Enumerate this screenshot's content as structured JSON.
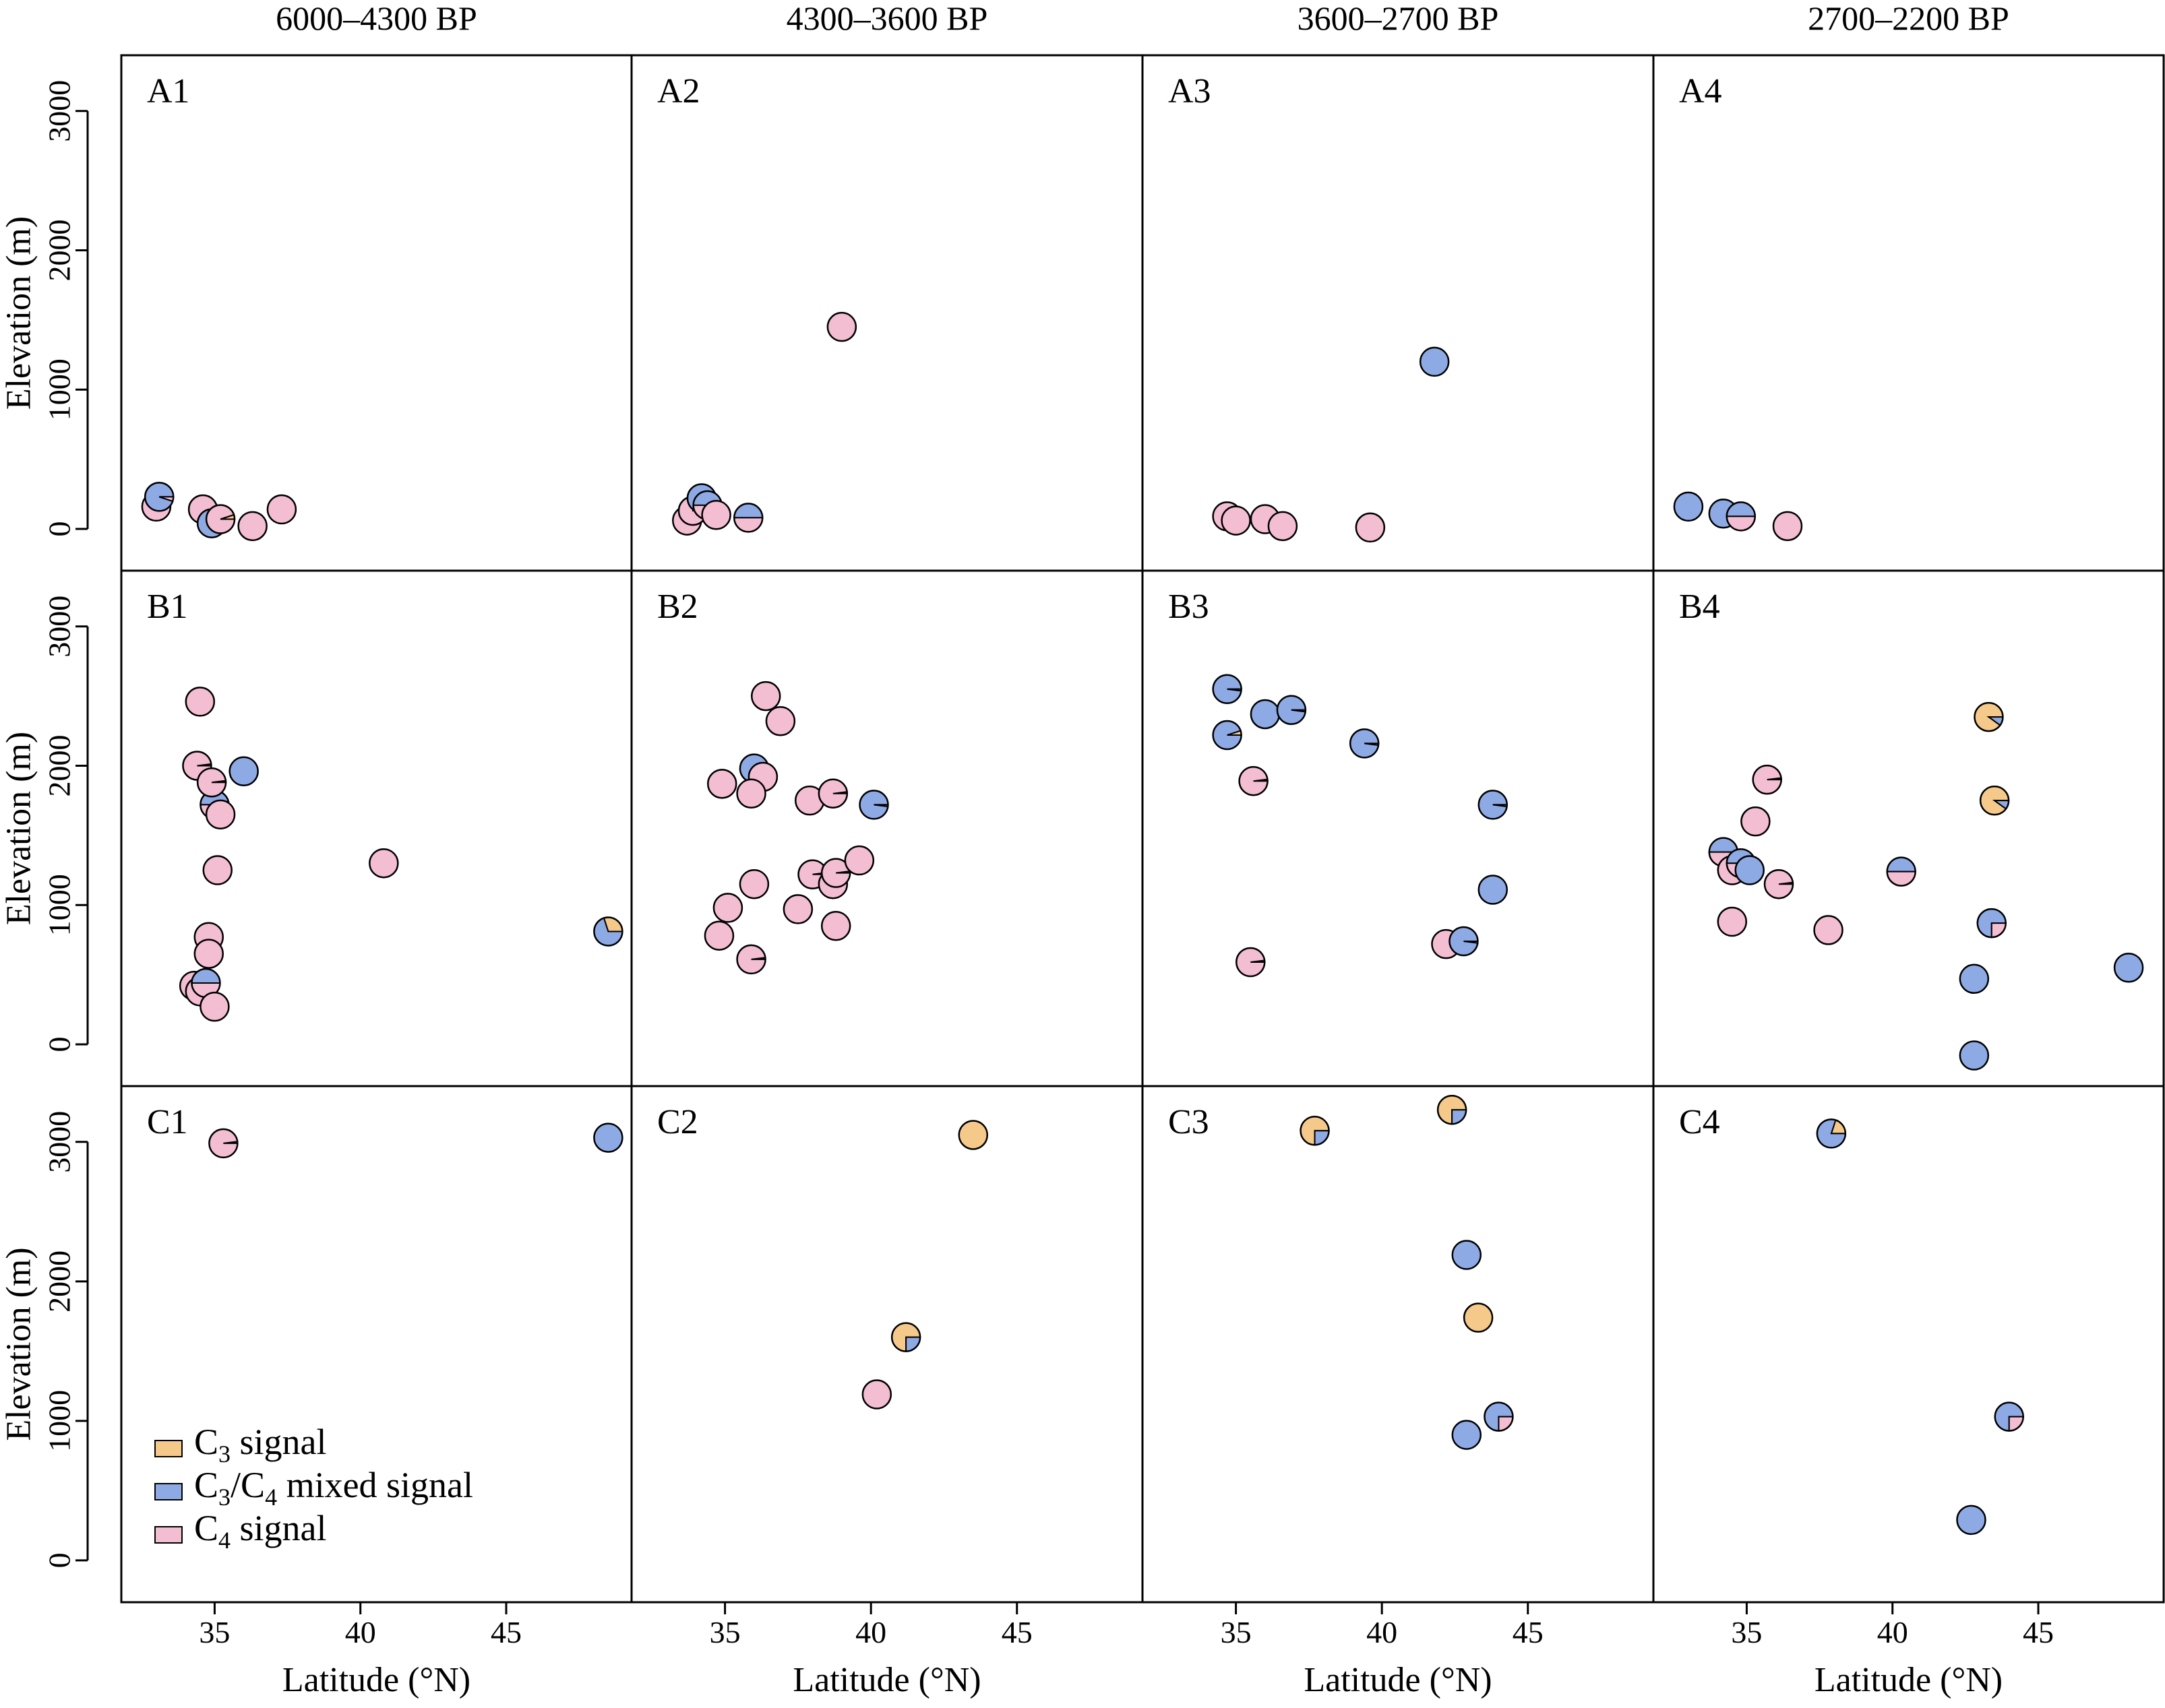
{
  "legend": [
    {
      "name": "C",
      "sub": "3",
      "rest": " signal",
      "key": "c3",
      "color": "#f5c98a"
    },
    {
      "name": "C",
      "sub": "3",
      "rest": "/C",
      "sub2": "4",
      "rest2": " mixed signal",
      "key": "mix",
      "color": "#8eaae5"
    },
    {
      "name": "C",
      "sub": "4",
      "rest": " signal",
      "key": "c4",
      "color": "#f3bdd2"
    }
  ],
  "chart_data": {
    "type": "scatter",
    "marker": "pie",
    "xlabel": "Latitude (°N)",
    "ylabel": "Elevation (m)",
    "xlim": [
      31.8,
      49.3
    ],
    "ylim": [
      -300,
      3400
    ],
    "xticks": [
      35,
      40,
      45
    ],
    "yticks": [
      0,
      1000,
      2000,
      3000
    ],
    "columns": [
      "6000–4300 BP",
      "4300–3600 BP",
      "3600–2700 BP",
      "2700–2200 BP"
    ],
    "rows": [
      "A",
      "B",
      "C"
    ],
    "pie_order": [
      "c3",
      "mix",
      "c4"
    ],
    "panels": [
      {
        "label": "A1",
        "points": [
          [
            33.0,
            160,
            [
              0,
              0,
              1
            ]
          ],
          [
            33.1,
            230,
            [
              0,
              0.95,
              0.05
            ]
          ],
          [
            34.6,
            140,
            [
              0,
              0,
              1
            ]
          ],
          [
            34.9,
            40,
            [
              0.05,
              0.95,
              0
            ]
          ],
          [
            35.2,
            70,
            [
              0.05,
              0,
              0.95
            ]
          ],
          [
            36.3,
            20,
            [
              0,
              0,
              1
            ]
          ],
          [
            37.3,
            140,
            [
              0,
              0,
              1
            ]
          ]
        ]
      },
      {
        "label": "A2",
        "points": [
          [
            33.7,
            60,
            [
              0,
              0,
              1
            ]
          ],
          [
            33.9,
            130,
            [
              0.25,
              0,
              0.75
            ]
          ],
          [
            34.2,
            220,
            [
              0,
              1,
              0
            ]
          ],
          [
            34.4,
            170,
            [
              0,
              0.5,
              0.5
            ]
          ],
          [
            34.7,
            100,
            [
              0,
              0,
              1
            ]
          ],
          [
            35.8,
            80,
            [
              0,
              0.5,
              0.5
            ]
          ],
          [
            39.0,
            1450,
            [
              0,
              0,
              1
            ]
          ]
        ]
      },
      {
        "label": "A3",
        "points": [
          [
            34.7,
            90,
            [
              0,
              0,
              1
            ]
          ],
          [
            35.0,
            60,
            [
              0,
              0,
              1
            ]
          ],
          [
            36.0,
            70,
            [
              0,
              0,
              1
            ]
          ],
          [
            36.6,
            20,
            [
              0,
              0,
              1
            ]
          ],
          [
            39.6,
            10,
            [
              0,
              0,
              1
            ]
          ],
          [
            41.8,
            1200,
            [
              0,
              1,
              0
            ]
          ]
        ]
      },
      {
        "label": "A4",
        "points": [
          [
            33.0,
            160,
            [
              0,
              1,
              0
            ]
          ],
          [
            34.2,
            110,
            [
              0,
              1,
              0
            ]
          ],
          [
            34.8,
            90,
            [
              0,
              0.5,
              0.5
            ]
          ],
          [
            36.4,
            20,
            [
              0,
              0,
              1
            ]
          ]
        ]
      },
      {
        "label": "B1",
        "points": [
          [
            34.5,
            2460,
            [
              0,
              0,
              1
            ]
          ],
          [
            34.4,
            2000,
            [
              0,
              0.02,
              0.98
            ]
          ],
          [
            35.0,
            1720,
            [
              0,
              0.5,
              0.5
            ]
          ],
          [
            34.9,
            1880,
            [
              0,
              0.02,
              0.98
            ]
          ],
          [
            35.2,
            1650,
            [
              0,
              0,
              1
            ]
          ],
          [
            36.0,
            1960,
            [
              0,
              1,
              0
            ]
          ],
          [
            35.1,
            1250,
            [
              0,
              0,
              1
            ]
          ],
          [
            34.8,
            770,
            [
              0,
              0,
              1
            ]
          ],
          [
            34.8,
            650,
            [
              0,
              0,
              1
            ]
          ],
          [
            34.3,
            420,
            [
              0,
              0,
              1
            ]
          ],
          [
            34.5,
            380,
            [
              0,
              0,
              1
            ]
          ],
          [
            34.7,
            440,
            [
              0,
              0.5,
              0.5
            ]
          ],
          [
            35.0,
            270,
            [
              0,
              0,
              1
            ]
          ],
          [
            40.8,
            1300,
            [
              0,
              0,
              1
            ]
          ],
          [
            48.5,
            810,
            [
              0.3,
              0.7,
              0
            ]
          ]
        ]
      },
      {
        "label": "B2",
        "points": [
          [
            36.4,
            2500,
            [
              0,
              0,
              1
            ]
          ],
          [
            36.9,
            2320,
            [
              0,
              0,
              1
            ]
          ],
          [
            36.0,
            1980,
            [
              0,
              1,
              0
            ]
          ],
          [
            36.3,
            1920,
            [
              0,
              0,
              1
            ]
          ],
          [
            34.9,
            1870,
            [
              0,
              0,
              1
            ]
          ],
          [
            35.9,
            1800,
            [
              0,
              0,
              1
            ]
          ],
          [
            37.9,
            1750,
            [
              0,
              0,
              1
            ]
          ],
          [
            38.7,
            1800,
            [
              0,
              0.02,
              0.98
            ]
          ],
          [
            40.1,
            1720,
            [
              0,
              0.98,
              0.02
            ]
          ],
          [
            36.0,
            1150,
            [
              0,
              0,
              1
            ]
          ],
          [
            38.0,
            1220,
            [
              0,
              0.02,
              0.98
            ]
          ],
          [
            38.7,
            1150,
            [
              0,
              0,
              1
            ]
          ],
          [
            38.8,
            1230,
            [
              0,
              0.02,
              0.98
            ]
          ],
          [
            39.6,
            1320,
            [
              0,
              0,
              1
            ]
          ],
          [
            35.1,
            980,
            [
              0,
              0,
              1
            ]
          ],
          [
            37.5,
            970,
            [
              0,
              0,
              1
            ]
          ],
          [
            34.8,
            780,
            [
              0,
              0,
              1
            ]
          ],
          [
            38.8,
            850,
            [
              0,
              0,
              1
            ]
          ],
          [
            35.9,
            610,
            [
              0,
              0.02,
              0.98
            ]
          ]
        ]
      },
      {
        "label": "B3",
        "points": [
          [
            34.7,
            2550,
            [
              0,
              0.98,
              0.02
            ]
          ],
          [
            34.7,
            2220,
            [
              0.05,
              0.95,
              0
            ]
          ],
          [
            36.0,
            2370,
            [
              0,
              1,
              0
            ]
          ],
          [
            36.9,
            2400,
            [
              0,
              0.98,
              0.02
            ]
          ],
          [
            39.4,
            2160,
            [
              0,
              0.98,
              0.02
            ]
          ],
          [
            35.6,
            1890,
            [
              0,
              0.02,
              0.98
            ]
          ],
          [
            43.8,
            1720,
            [
              0,
              0.98,
              0.02
            ]
          ],
          [
            43.8,
            1110,
            [
              0,
              1,
              0
            ]
          ],
          [
            42.2,
            720,
            [
              0,
              0,
              1
            ]
          ],
          [
            42.8,
            740,
            [
              0,
              0.98,
              0.02
            ]
          ],
          [
            35.5,
            590,
            [
              0,
              0.02,
              0.98
            ]
          ]
        ]
      },
      {
        "label": "B4",
        "points": [
          [
            43.3,
            2350,
            [
              0.9,
              0.1,
              0
            ]
          ],
          [
            43.5,
            1750,
            [
              0.9,
              0.1,
              0
            ]
          ],
          [
            35.7,
            1900,
            [
              0,
              0.02,
              0.98
            ]
          ],
          [
            35.3,
            1600,
            [
              0,
              0,
              1
            ]
          ],
          [
            34.2,
            1380,
            [
              0,
              0.5,
              0.5
            ]
          ],
          [
            34.5,
            1250,
            [
              0,
              0,
              1
            ]
          ],
          [
            34.8,
            1300,
            [
              0,
              0.5,
              0.5
            ]
          ],
          [
            35.1,
            1250,
            [
              0,
              1,
              0
            ]
          ],
          [
            36.1,
            1150,
            [
              0,
              0.02,
              0.98
            ]
          ],
          [
            40.3,
            1240,
            [
              0,
              0.5,
              0.5
            ]
          ],
          [
            34.5,
            880,
            [
              0,
              0,
              1
            ]
          ],
          [
            37.8,
            820,
            [
              0,
              0,
              1
            ]
          ],
          [
            43.4,
            870,
            [
              0,
              0.75,
              0.25
            ]
          ],
          [
            42.8,
            470,
            [
              0,
              1,
              0
            ]
          ],
          [
            48.1,
            550,
            [
              0,
              1,
              0
            ]
          ],
          [
            42.8,
            -80,
            [
              0,
              1,
              0
            ]
          ]
        ]
      },
      {
        "label": "C1",
        "points": [
          [
            35.3,
            2990,
            [
              0,
              0.02,
              0.98
            ]
          ],
          [
            48.5,
            3030,
            [
              0,
              1,
              0
            ]
          ]
        ]
      },
      {
        "label": "C2",
        "points": [
          [
            43.5,
            3050,
            [
              1,
              0,
              0
            ]
          ],
          [
            41.2,
            1600,
            [
              0.75,
              0.25,
              0
            ]
          ],
          [
            40.2,
            1190,
            [
              0,
              0,
              1
            ]
          ]
        ]
      },
      {
        "label": "C3",
        "points": [
          [
            37.7,
            3080,
            [
              0.75,
              0.25,
              0
            ]
          ],
          [
            42.4,
            3230,
            [
              0.75,
              0.25,
              0
            ]
          ],
          [
            42.9,
            2190,
            [
              0,
              1,
              0
            ]
          ],
          [
            43.3,
            1740,
            [
              1,
              0,
              0
            ]
          ],
          [
            44.0,
            1030,
            [
              0,
              0.75,
              0.25
            ]
          ],
          [
            42.9,
            900,
            [
              0,
              1,
              0
            ]
          ]
        ]
      },
      {
        "label": "C4",
        "points": [
          [
            37.9,
            3060,
            [
              0.2,
              0.8,
              0
            ]
          ],
          [
            44.0,
            1030,
            [
              0,
              0.75,
              0.25
            ]
          ],
          [
            42.7,
            290,
            [
              0,
              1,
              0
            ]
          ]
        ]
      }
    ]
  }
}
